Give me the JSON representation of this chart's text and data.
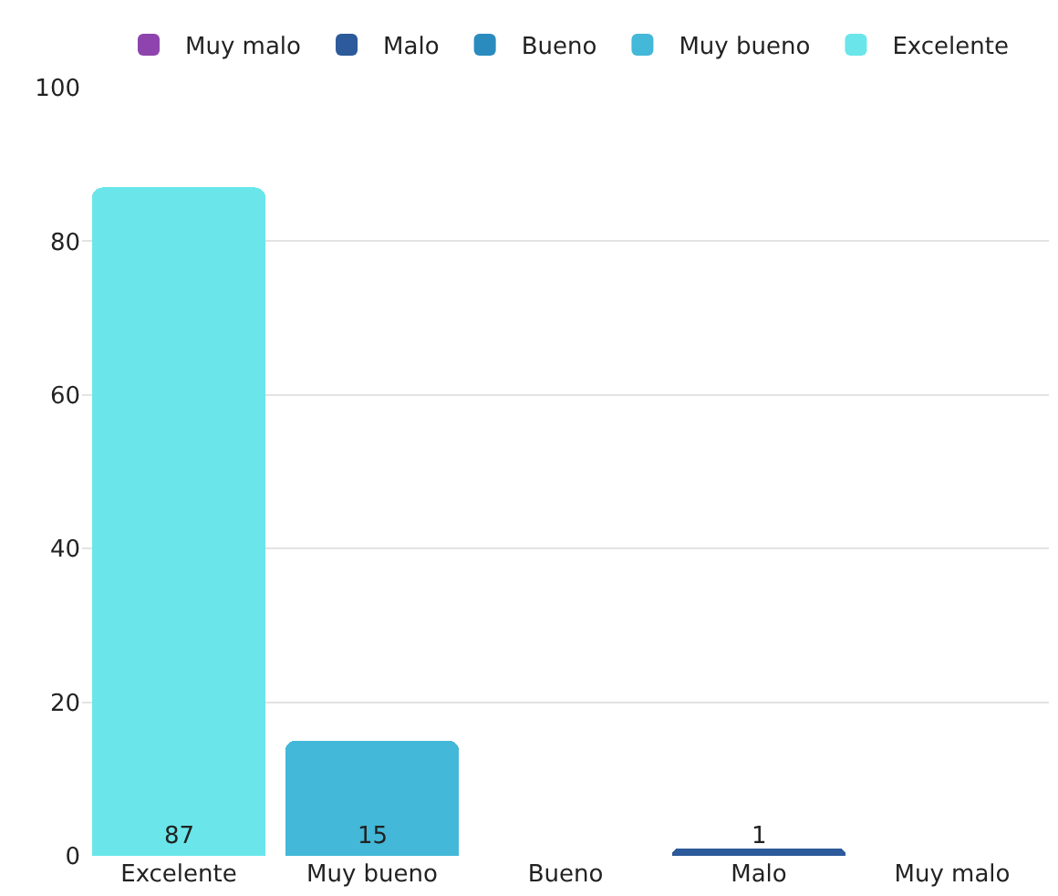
{
  "chart_data": {
    "type": "bar",
    "categories": [
      "Excelente",
      "Muy bueno",
      "Bueno",
      "Malo",
      "Muy malo"
    ],
    "series": [
      {
        "name": "Excelente",
        "color": "#6ae6ea",
        "values": [
          87,
          null,
          null,
          null,
          null
        ],
        "value_labels": [
          "87",
          null,
          null,
          null,
          null
        ]
      },
      {
        "name": "Muy bueno",
        "color": "#43b8d8",
        "values": [
          null,
          15,
          null,
          null,
          null
        ],
        "value_labels": [
          null,
          "15",
          null,
          null,
          null
        ]
      },
      {
        "name": "Bueno",
        "color": "#2a8bbf",
        "values": [
          null,
          null,
          0,
          null,
          null
        ],
        "value_labels": [
          null,
          null,
          null,
          null,
          null
        ]
      },
      {
        "name": "Malo",
        "color": "#2c5a9a",
        "values": [
          null,
          null,
          null,
          1,
          null
        ],
        "value_labels": [
          null,
          null,
          null,
          "1",
          null
        ]
      },
      {
        "name": "Muy malo",
        "color": "#8e44ad",
        "values": [
          null,
          null,
          null,
          null,
          0
        ],
        "value_labels": [
          null,
          null,
          null,
          null,
          null
        ]
      }
    ],
    "stacked": true,
    "ylim": [
      0,
      100
    ],
    "yticks": [
      0,
      20,
      40,
      60,
      80,
      100
    ],
    "grid": "y",
    "legend": "top"
  }
}
